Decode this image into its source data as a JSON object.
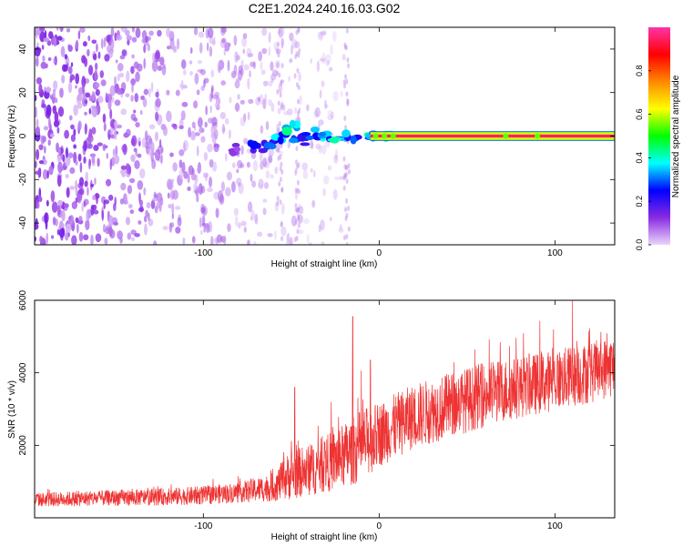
{
  "page_title": "C2E1.2024.240.16.03.G02",
  "chart_data": [
    {
      "type": "heatmap",
      "title": "",
      "xlabel": "Height of straight line (km)",
      "ylabel": "Frequency (Hz)",
      "xlim": [
        -196,
        134
      ],
      "ylim": [
        -50,
        50
      ],
      "xticks": [
        -100,
        0,
        100
      ],
      "yticks": [
        -40,
        -20,
        0,
        20,
        40
      ],
      "colorbar": {
        "label": "Normalized spectral amplitude",
        "range": [
          0,
          1
        ],
        "ticks": [
          0.0,
          0.2,
          0.4,
          0.6,
          0.8
        ],
        "colors": [
          "#e9d5fa",
          "#8a2be2",
          "#0000ff",
          "#00ffff",
          "#00ff00",
          "#ffff00",
          "#ff8800",
          "#ff0000",
          "#ff33aa"
        ]
      },
      "features": {
        "dominant_signal": {
          "frequency_hz": 0,
          "from_km": -5,
          "to_km": 134,
          "amplitude": 0.95
        },
        "emerging_signal": [
          {
            "x": -80,
            "y": -6,
            "a": 0.15
          },
          {
            "x": -70,
            "y": -5,
            "a": 0.25
          },
          {
            "x": -62,
            "y": -3,
            "a": 0.3
          },
          {
            "x": -55,
            "y": 0,
            "a": 0.35
          },
          {
            "x": -50,
            "y": 4,
            "a": 0.4
          },
          {
            "x": -45,
            "y": -2,
            "a": 0.3
          },
          {
            "x": -38,
            "y": 1,
            "a": 0.35
          },
          {
            "x": -30,
            "y": 0,
            "a": 0.4
          },
          {
            "x": -22,
            "y": -1,
            "a": 0.4
          },
          {
            "x": -15,
            "y": 0,
            "a": 0.35
          },
          {
            "x": -5,
            "y": 0,
            "a": 0.45
          },
          {
            "x": 5,
            "y": 0,
            "a": 0.6
          }
        ],
        "noise_region_km": [
          -196,
          -20
        ]
      }
    },
    {
      "type": "line",
      "title": "",
      "xlabel": "Height of straight line (km)",
      "ylabel": "SNR (10 * v/v)",
      "xlim": [
        -196,
        134
      ],
      "ylim": [
        0,
        6000
      ],
      "xticks": [
        -100,
        0,
        100
      ],
      "yticks": [
        2000,
        4000,
        6000
      ],
      "color": "#ee3333",
      "envelope": {
        "x": [
          -196,
          -150,
          -120,
          -100,
          -80,
          -60,
          -50,
          -40,
          -30,
          -20,
          -10,
          0,
          20,
          40,
          60,
          80,
          100,
          120,
          134
        ],
        "mean": [
          500,
          550,
          580,
          620,
          700,
          850,
          1200,
          1300,
          1500,
          1700,
          2000,
          2300,
          2800,
          3100,
          3400,
          3600,
          3800,
          4000,
          4200
        ],
        "spread": [
          200,
          220,
          240,
          260,
          280,
          400,
          700,
          700,
          800,
          900,
          1000,
          900,
          900,
          900,
          900,
          850,
          850,
          850,
          850
        ]
      },
      "spikes": [
        {
          "x": -48,
          "y": 3600
        },
        {
          "x": -15,
          "y": 5550
        },
        {
          "x": -5,
          "y": 4350
        },
        {
          "x": 110,
          "y": 6000
        }
      ]
    }
  ]
}
